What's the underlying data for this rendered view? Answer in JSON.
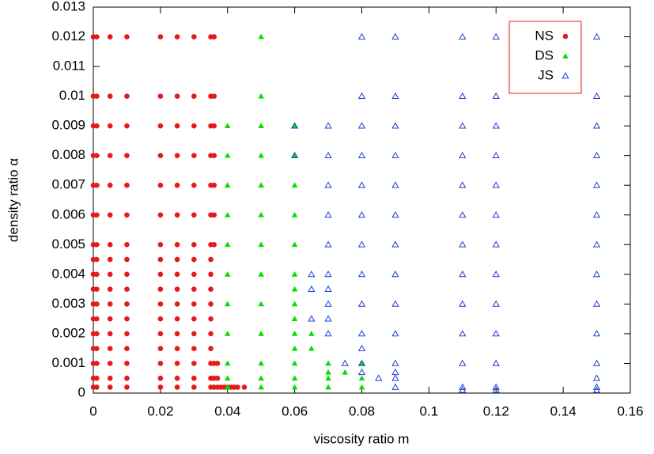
{
  "chart_data": {
    "type": "scatter",
    "x_label": "viscosity ratio m",
    "y_label": "density ratio α",
    "xlim": [
      0,
      0.16
    ],
    "xticks": [
      0,
      0.02,
      0.04,
      0.06,
      0.08,
      0.1,
      0.12,
      0.14,
      0.16
    ],
    "ylim": [
      0,
      0.013
    ],
    "yticks": [
      0,
      0.001,
      0.002,
      0.003,
      0.004,
      0.005,
      0.006,
      0.007,
      0.008,
      0.009,
      0.01,
      0.011,
      0.012,
      0.013
    ],
    "legend": "upper right",
    "series": [
      {
        "name": "NS",
        "color": "#e41a1c",
        "marker": "circle",
        "x": [
          0,
          0.001,
          0.005,
          0.01,
          0.02,
          0.025,
          0.03,
          0.035,
          0.036,
          0,
          0.001,
          0.005,
          0.01,
          0.02,
          0.025,
          0.03,
          0.035,
          0.036,
          0,
          0.001,
          0.005,
          0.01,
          0.02,
          0.025,
          0.03,
          0.035,
          0.036,
          0,
          0.001,
          0.005,
          0.01,
          0.02,
          0.025,
          0.03,
          0.035,
          0.036,
          0,
          0.001,
          0.005,
          0.01,
          0.02,
          0.025,
          0.03,
          0.035,
          0.036,
          0,
          0.001,
          0.005,
          0.01,
          0.02,
          0.025,
          0.03,
          0.035,
          0.036,
          0,
          0.001,
          0.005,
          0.01,
          0.02,
          0.025,
          0.03,
          0.035,
          0.036,
          0,
          0.001,
          0.005,
          0.01,
          0.02,
          0.025,
          0.03,
          0.035,
          0,
          0.001,
          0.005,
          0.01,
          0.02,
          0.025,
          0.03,
          0.035,
          0,
          0.001,
          0.005,
          0.01,
          0.02,
          0.025,
          0.03,
          0.035,
          0,
          0.001,
          0.005,
          0.01,
          0.02,
          0.025,
          0.03,
          0.035,
          0,
          0.001,
          0.005,
          0.01,
          0.02,
          0.025,
          0.03,
          0.035,
          0,
          0.001,
          0.005,
          0.01,
          0.02,
          0.025,
          0.03,
          0.035,
          0,
          0.001,
          0.005,
          0.01,
          0.02,
          0.025,
          0.03,
          0.035,
          0,
          0.001,
          0.005,
          0.01,
          0.02,
          0.025,
          0.03,
          0.035,
          0,
          0.001,
          0.005,
          0.01,
          0.02,
          0.025,
          0.03,
          0.035,
          0,
          0.001,
          0.005,
          0.01,
          0.02,
          0.025,
          0.03,
          0.035,
          0.036,
          0.037,
          0.038,
          0.039,
          0.04,
          0.041,
          0.042,
          0.043,
          0.045,
          0.036,
          0.037,
          0.036,
          0.037
        ],
        "values": [
          0.012,
          0.012,
          0.012,
          0.012,
          0.012,
          0.012,
          0.012,
          0.012,
          0.012,
          0.01,
          0.01,
          0.01,
          0.01,
          0.01,
          0.01,
          0.01,
          0.01,
          0.01,
          0.009,
          0.009,
          0.009,
          0.009,
          0.009,
          0.009,
          0.009,
          0.009,
          0.009,
          0.008,
          0.008,
          0.008,
          0.008,
          0.008,
          0.008,
          0.008,
          0.008,
          0.008,
          0.007,
          0.007,
          0.007,
          0.007,
          0.007,
          0.007,
          0.007,
          0.007,
          0.007,
          0.006,
          0.006,
          0.006,
          0.006,
          0.006,
          0.006,
          0.006,
          0.006,
          0.006,
          0.005,
          0.005,
          0.005,
          0.005,
          0.005,
          0.005,
          0.005,
          0.005,
          0.005,
          0.0045,
          0.0045,
          0.0045,
          0.0045,
          0.0045,
          0.0045,
          0.0045,
          0.0045,
          0.004,
          0.004,
          0.004,
          0.004,
          0.004,
          0.004,
          0.004,
          0.004,
          0.0035,
          0.0035,
          0.0035,
          0.0035,
          0.0035,
          0.0035,
          0.0035,
          0.0035,
          0.003,
          0.003,
          0.003,
          0.003,
          0.003,
          0.003,
          0.003,
          0.003,
          0.0025,
          0.0025,
          0.0025,
          0.0025,
          0.0025,
          0.0025,
          0.0025,
          0.0025,
          0.002,
          0.002,
          0.002,
          0.002,
          0.002,
          0.002,
          0.002,
          0.002,
          0.0015,
          0.0015,
          0.0015,
          0.0015,
          0.0015,
          0.0015,
          0.0015,
          0.0015,
          0.001,
          0.001,
          0.001,
          0.001,
          0.001,
          0.001,
          0.001,
          0.001,
          0.0005,
          0.0005,
          0.0005,
          0.0005,
          0.0005,
          0.0005,
          0.0005,
          0.0005,
          0.0002,
          0.0002,
          0.0002,
          0.0002,
          0.0002,
          0.0002,
          0.0002,
          0.0002,
          0.0002,
          0.0002,
          0.0002,
          0.0002,
          0.0002,
          0.0002,
          0.0002,
          0.0002,
          0.0002,
          0.001,
          0.001,
          0.0005,
          0.0005
        ]
      },
      {
        "name": "DS",
        "color": "#00e000",
        "marker": "triangle",
        "x": [
          0.05,
          0.05,
          0.04,
          0.05,
          0.06,
          0.04,
          0.05,
          0.06,
          0.04,
          0.05,
          0.06,
          0.04,
          0.05,
          0.06,
          0.04,
          0.05,
          0.06,
          0.04,
          0.05,
          0.06,
          0.06,
          0.04,
          0.05,
          0.06,
          0.06,
          0.04,
          0.05,
          0.06,
          0.065,
          0.06,
          0.065,
          0.04,
          0.05,
          0.06,
          0.07,
          0.08,
          0.07,
          0.075,
          0.04,
          0.05,
          0.06,
          0.07,
          0.08,
          0.04,
          0.05,
          0.06,
          0.07,
          0.08
        ],
        "values": [
          0.012,
          0.01,
          0.009,
          0.009,
          0.009,
          0.008,
          0.008,
          0.008,
          0.007,
          0.007,
          0.007,
          0.006,
          0.006,
          0.006,
          0.005,
          0.005,
          0.005,
          0.004,
          0.004,
          0.004,
          0.0035,
          0.003,
          0.003,
          0.003,
          0.0025,
          0.002,
          0.002,
          0.002,
          0.002,
          0.0015,
          0.0015,
          0.001,
          0.001,
          0.001,
          0.001,
          0.001,
          0.0007,
          0.0007,
          0.0005,
          0.0005,
          0.0005,
          0.0005,
          0.0005,
          0.0002,
          0.0002,
          0.0002,
          0.0002,
          0.0002
        ]
      },
      {
        "name": "JS",
        "color": "#1f3fd8",
        "marker": "open-triangle",
        "x": [
          0.08,
          0.09,
          0.11,
          0.12,
          0.15,
          0.08,
          0.09,
          0.11,
          0.12,
          0.15,
          0.06,
          0.07,
          0.08,
          0.09,
          0.11,
          0.12,
          0.15,
          0.06,
          0.07,
          0.08,
          0.09,
          0.11,
          0.12,
          0.15,
          0.07,
          0.08,
          0.09,
          0.11,
          0.12,
          0.15,
          0.07,
          0.08,
          0.09,
          0.11,
          0.12,
          0.15,
          0.07,
          0.08,
          0.09,
          0.11,
          0.12,
          0.15,
          0.065,
          0.07,
          0.08,
          0.09,
          0.11,
          0.12,
          0.15,
          0.065,
          0.07,
          0.07,
          0.08,
          0.09,
          0.11,
          0.12,
          0.15,
          0.065,
          0.07,
          0.07,
          0.08,
          0.09,
          0.11,
          0.12,
          0.15,
          0.08,
          0.075,
          0.08,
          0.09,
          0.11,
          0.12,
          0.15,
          0.08,
          0.09,
          0.085,
          0.09,
          0.15,
          0.09,
          0.11,
          0.12,
          0.15,
          0.11,
          0.12,
          0.15
        ],
        "values": [
          0.012,
          0.012,
          0.012,
          0.012,
          0.012,
          0.01,
          0.01,
          0.01,
          0.01,
          0.01,
          0.009,
          0.009,
          0.009,
          0.009,
          0.009,
          0.009,
          0.009,
          0.008,
          0.008,
          0.008,
          0.008,
          0.008,
          0.008,
          0.008,
          0.007,
          0.007,
          0.007,
          0.007,
          0.007,
          0.007,
          0.006,
          0.006,
          0.006,
          0.006,
          0.006,
          0.006,
          0.005,
          0.005,
          0.005,
          0.005,
          0.005,
          0.005,
          0.004,
          0.004,
          0.004,
          0.004,
          0.004,
          0.004,
          0.004,
          0.0035,
          0.0035,
          0.003,
          0.003,
          0.003,
          0.003,
          0.003,
          0.003,
          0.0025,
          0.0025,
          0.002,
          0.002,
          0.002,
          0.002,
          0.002,
          0.002,
          0.0015,
          0.001,
          0.001,
          0.001,
          0.001,
          0.001,
          0.001,
          0.0007,
          0.0007,
          0.0005,
          0.0005,
          0.0005,
          0.0002,
          0.0002,
          0.0002,
          0.0002,
          0.0001,
          0.0001,
          0.0001
        ]
      }
    ]
  }
}
